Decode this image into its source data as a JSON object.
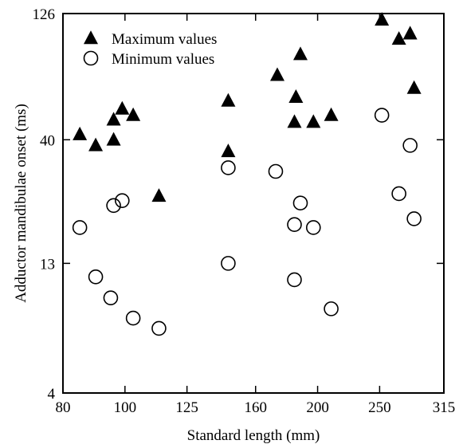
{
  "chart_data": {
    "type": "scatter",
    "title": "",
    "xlabel": "Standard length (mm)",
    "ylabel": "Adductor mandibulae onset (ms)",
    "x_scale": "log",
    "y_scale": "log",
    "xlim": [
      80,
      315
    ],
    "ylim": [
      4,
      126
    ],
    "x_ticks": [
      80,
      100,
      125,
      160,
      200,
      250,
      315
    ],
    "y_ticks": [
      4,
      13,
      40,
      126
    ],
    "grid": false,
    "legend_position": "top-left",
    "series": [
      {
        "name": "Maximum values",
        "marker": "filled-triangle",
        "points": [
          {
            "x": 85,
            "y": 42
          },
          {
            "x": 90,
            "y": 38
          },
          {
            "x": 96,
            "y": 40
          },
          {
            "x": 96,
            "y": 48
          },
          {
            "x": 99,
            "y": 53
          },
          {
            "x": 103,
            "y": 50
          },
          {
            "x": 113,
            "y": 24
          },
          {
            "x": 145,
            "y": 57
          },
          {
            "x": 145,
            "y": 36
          },
          {
            "x": 173,
            "y": 72
          },
          {
            "x": 185,
            "y": 59
          },
          {
            "x": 188,
            "y": 87
          },
          {
            "x": 184,
            "y": 47
          },
          {
            "x": 197,
            "y": 47
          },
          {
            "x": 210,
            "y": 50
          },
          {
            "x": 252,
            "y": 119
          },
          {
            "x": 268,
            "y": 100
          },
          {
            "x": 279,
            "y": 105
          },
          {
            "x": 283,
            "y": 64
          }
        ]
      },
      {
        "name": "Minimum values",
        "marker": "open-circle",
        "points": [
          {
            "x": 85,
            "y": 18
          },
          {
            "x": 90,
            "y": 11.5
          },
          {
            "x": 95,
            "y": 9.5
          },
          {
            "x": 96,
            "y": 22
          },
          {
            "x": 99,
            "y": 23
          },
          {
            "x": 103,
            "y": 7.9
          },
          {
            "x": 113,
            "y": 7.2
          },
          {
            "x": 145,
            "y": 31
          },
          {
            "x": 145,
            "y": 13
          },
          {
            "x": 172,
            "y": 30
          },
          {
            "x": 184,
            "y": 18.5
          },
          {
            "x": 184,
            "y": 11.2
          },
          {
            "x": 188,
            "y": 22.5
          },
          {
            "x": 197,
            "y": 18
          },
          {
            "x": 210,
            "y": 8.6
          },
          {
            "x": 252,
            "y": 50
          },
          {
            "x": 268,
            "y": 24.5
          },
          {
            "x": 279,
            "y": 38
          },
          {
            "x": 283,
            "y": 19.5
          }
        ]
      }
    ]
  }
}
